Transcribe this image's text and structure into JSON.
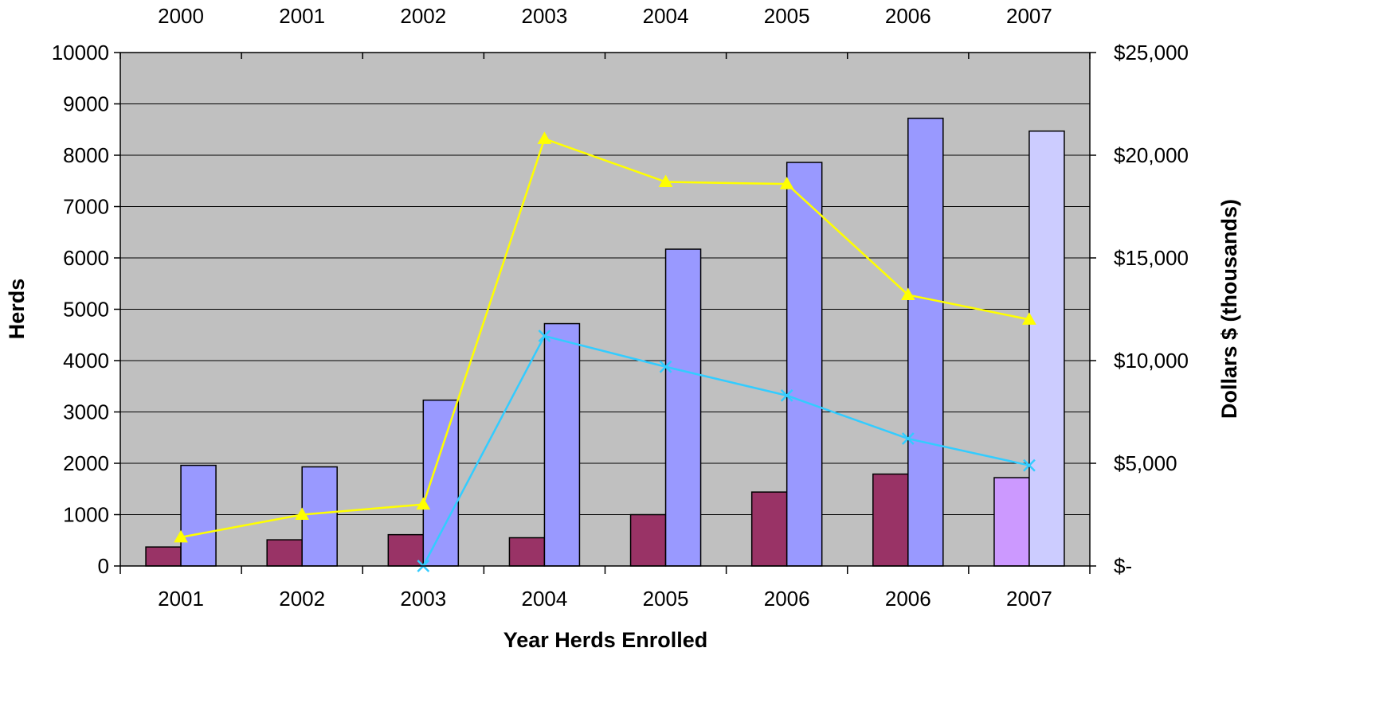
{
  "chart_data": {
    "type": "bar",
    "categories": [
      "2001",
      "2002",
      "2003",
      "2004",
      "2005",
      "2006",
      "2006",
      "2007"
    ],
    "top_categories": [
      "2000",
      "2001",
      "2002",
      "2003",
      "2004",
      "2005",
      "2006",
      "2007"
    ],
    "xlabel": "Year Herds Enrolled",
    "ylabel": "Herds",
    "y2label": "Dollars $ (thousands)",
    "ylim": [
      0,
      10000
    ],
    "y2lim": [
      0,
      25000
    ],
    "yticks": [
      "0",
      "1000",
      "2000",
      "3000",
      "4000",
      "5000",
      "6000",
      "7000",
      "8000",
      "9000",
      "10000"
    ],
    "y2ticks": [
      "$-",
      "$5,000",
      "$10,000",
      "$15,000",
      "$20,000",
      "$25,000"
    ],
    "grid": true,
    "plot_background": "#C0C0C0",
    "bar_series": [
      {
        "axis": "left",
        "values": [
          370,
          510,
          610,
          550,
          1000,
          1440,
          1790,
          1720
        ],
        "colors": [
          "#993366",
          "#993366",
          "#993366",
          "#993366",
          "#993366",
          "#993366",
          "#993366",
          "#CC99FF"
        ]
      },
      {
        "axis": "left",
        "values": [
          1960,
          1930,
          3230,
          4720,
          6170,
          7860,
          8720,
          8470
        ],
        "colors": [
          "#9999FF",
          "#9999FF",
          "#9999FF",
          "#9999FF",
          "#9999FF",
          "#9999FF",
          "#9999FF",
          "#CCCCFF"
        ]
      }
    ],
    "line_series": [
      {
        "axis": "right",
        "marker": "triangle",
        "color": "#FFFF00",
        "values": [
          1400,
          2500,
          3000,
          20800,
          18700,
          18600,
          13200,
          12000
        ]
      },
      {
        "axis": "right",
        "marker": "x",
        "color": "#33CCFF",
        "values": [
          null,
          null,
          0,
          11200,
          9700,
          8300,
          6200,
          4900
        ]
      }
    ]
  }
}
